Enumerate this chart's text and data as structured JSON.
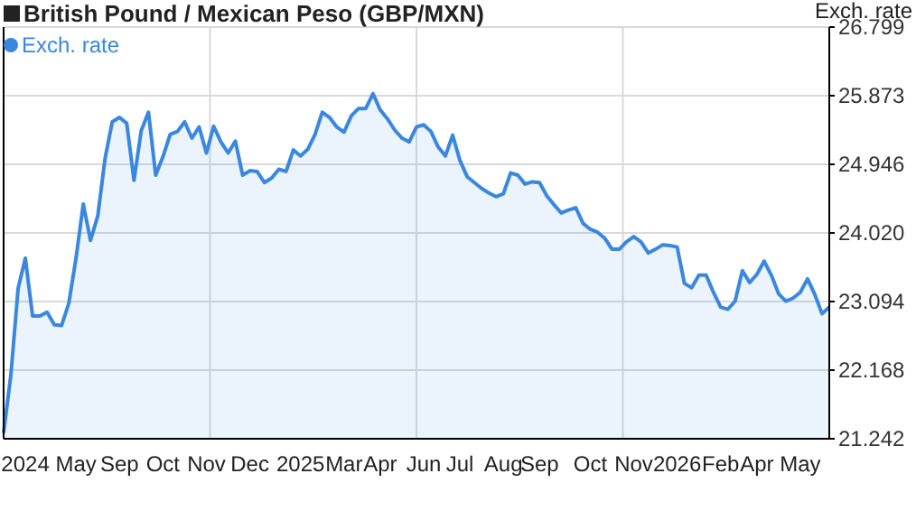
{
  "chart_data": {
    "type": "area",
    "title": "British Pound / Mexican Peso (GBP/MXN)",
    "ylabel": "Exch. rate",
    "legend": "top left",
    "grid": true,
    "categories": [
      null,
      null,
      null,
      "2024",
      null,
      null,
      null,
      null,
      null,
      null,
      "May",
      null,
      null,
      null,
      null,
      null,
      "Sep",
      null,
      null,
      null,
      null,
      null,
      "Oct",
      null,
      null,
      null,
      null,
      null,
      "Nov",
      null,
      null,
      null,
      null,
      null,
      "Dec",
      null,
      null,
      null,
      null,
      null,
      null,
      "2025",
      null,
      null,
      null,
      null,
      null,
      "Mar",
      null,
      null,
      null,
      null,
      "Apr",
      null,
      null,
      null,
      null,
      null,
      "Jun",
      null,
      null,
      null,
      null,
      "Jul",
      null,
      null,
      null,
      null,
      null,
      "Aug",
      null,
      null,
      null,
      null,
      "Sep",
      null,
      null,
      null,
      null,
      null,
      null,
      "Oct",
      null,
      null,
      null,
      null,
      null,
      "Nov",
      null,
      null,
      null,
      null,
      null,
      "2026",
      null,
      null,
      null,
      null,
      null,
      "Feb",
      null,
      null,
      null,
      null,
      "Apr",
      null,
      null,
      null,
      null,
      null,
      "May",
      null,
      null,
      null,
      null
    ],
    "series": [
      {
        "name": "Exch. rate",
        "color": "#3a87e0",
        "values": [
          21.32,
          22.1,
          23.27,
          23.68,
          22.9,
          22.9,
          22.95,
          22.78,
          22.77,
          23.07,
          23.68,
          24.41,
          23.92,
          24.25,
          25.02,
          25.52,
          25.58,
          25.5,
          24.73,
          25.4,
          25.65,
          24.8,
          25.05,
          25.35,
          25.39,
          25.52,
          25.3,
          25.45,
          25.1,
          25.46,
          25.25,
          25.1,
          25.26,
          24.8,
          24.86,
          24.85,
          24.7,
          24.76,
          24.88,
          24.85,
          25.14,
          25.06,
          25.15,
          25.35,
          25.65,
          25.58,
          25.45,
          25.38,
          25.6,
          25.7,
          25.7,
          25.9,
          25.68,
          25.56,
          25.41,
          25.3,
          25.25,
          25.45,
          25.48,
          25.39,
          25.18,
          25.06,
          25.34,
          25.0,
          24.78,
          24.7,
          24.62,
          24.56,
          24.51,
          24.55,
          24.83,
          24.8,
          24.68,
          24.71,
          24.7,
          24.52,
          24.4,
          24.29,
          24.33,
          24.36,
          24.15,
          24.07,
          24.03,
          23.95,
          23.8,
          23.8,
          23.9,
          23.97,
          23.9,
          23.75,
          23.8,
          23.86,
          23.85,
          23.83,
          23.34,
          23.28,
          23.45,
          23.45,
          23.22,
          23.02,
          22.99,
          23.1,
          23.51,
          23.35,
          23.46,
          23.64,
          23.45,
          23.2,
          23.1,
          23.14,
          23.22,
          23.4,
          23.19,
          22.93,
          23.02
        ]
      }
    ],
    "ylim": [
      21.242,
      26.799
    ],
    "yticks": [
      21.242,
      22.168,
      23.094,
      {
        "value": 24.02,
        "label": "24.020"
      },
      24.946,
      25.873,
      26.799
    ]
  }
}
